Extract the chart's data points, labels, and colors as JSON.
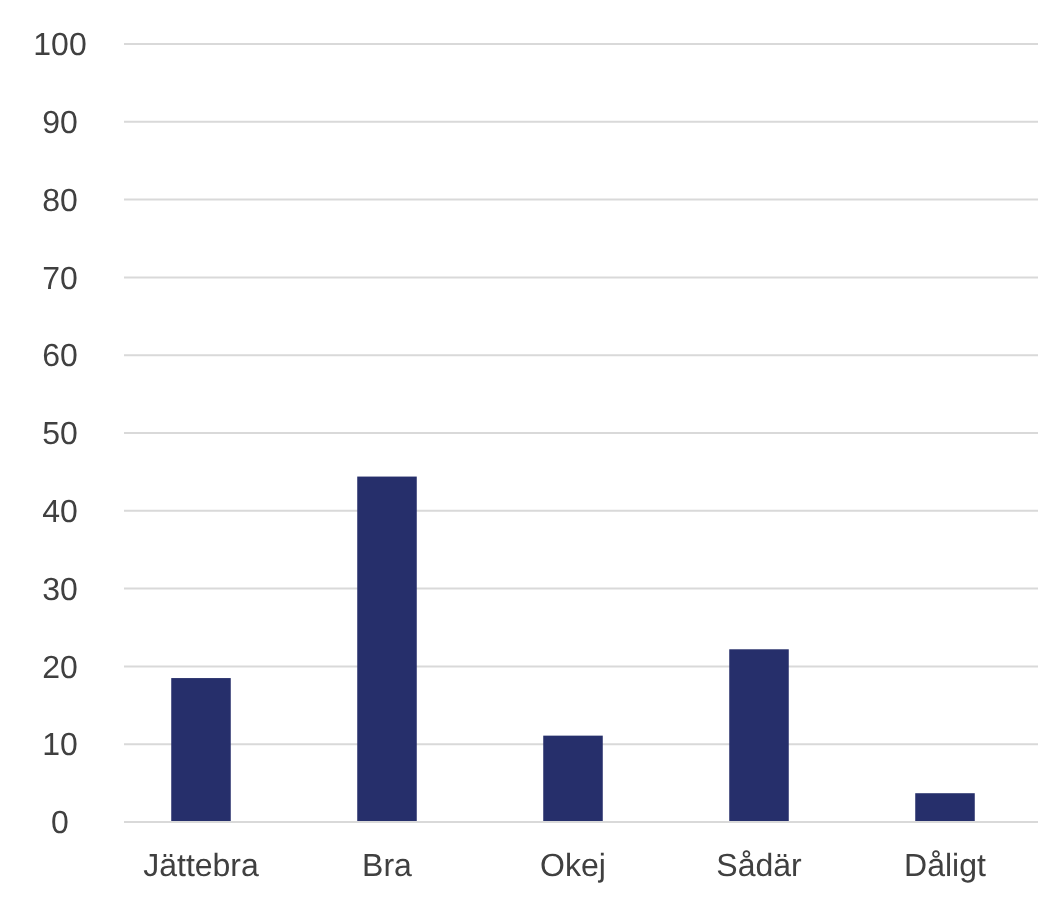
{
  "chart_data": {
    "type": "bar",
    "categories": [
      "Jättebra",
      "Bra",
      "Okej",
      "Sådär",
      "Dåligt"
    ],
    "values": [
      18.5,
      44.4,
      11.1,
      22.2,
      3.7
    ],
    "color": "#262f6b",
    "ylim": [
      0,
      100
    ],
    "yticks": [
      0,
      10,
      20,
      30,
      40,
      50,
      60,
      70,
      80,
      90,
      100
    ],
    "grid": "y"
  }
}
